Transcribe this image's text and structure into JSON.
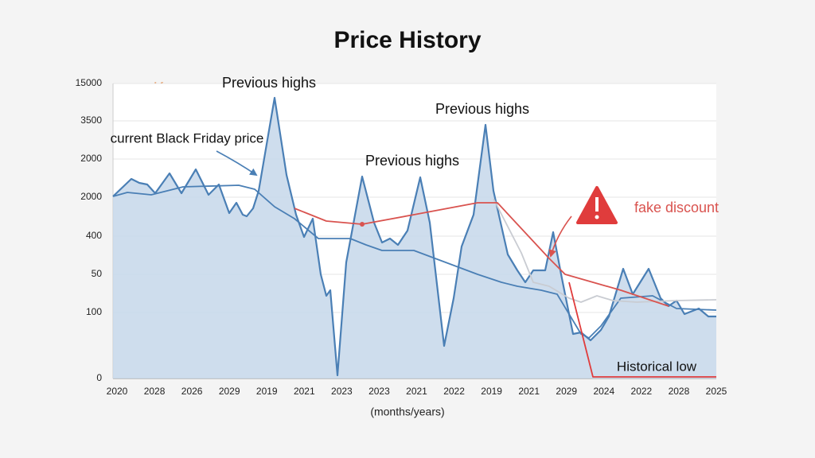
{
  "chart_data": {
    "type": "line",
    "title": "Price History",
    "x_label": "(months/years)",
    "logo": "Keepa",
    "y_axis_labels": [
      "15000",
      "3500",
      "2000",
      "2000",
      "400",
      "50",
      "100",
      "0"
    ],
    "categories": [
      "2020",
      "2028",
      "2026",
      "2029",
      "2019",
      "2021",
      "2023",
      "2023",
      "2021",
      "2022",
      "2019",
      "2021",
      "2029",
      "2024",
      "2022",
      "2028",
      "2025"
    ],
    "xlim": [
      0,
      758
    ],
    "ylim": [
      0,
      371
    ],
    "grid": true,
    "series": [
      {
        "color": "#4a7fb5",
        "fill": "#c5d7ea",
        "x": [
          0,
          23,
          33,
          43,
          53,
          71,
          86,
          104,
          120,
          133,
          146,
          155,
          163,
          168,
          176,
          183,
          203,
          218,
          230,
          240,
          251,
          261,
          268,
          273,
          282,
          293,
          313,
          328,
          338,
          348,
          358,
          370,
          386,
          398,
          416,
          428,
          438,
          453,
          468,
          478,
          496,
          508,
          518,
          528,
          543,
          553,
          563,
          578,
          588,
          600,
          613,
          623,
          641,
          653,
          673,
          688,
          698,
          708,
          718,
          736,
          748,
          758
        ],
        "values": [
          229,
          251,
          246,
          244,
          233,
          258,
          233,
          263,
          231,
          244,
          208,
          221,
          206,
          204,
          214,
          236,
          353,
          256,
          206,
          178,
          201,
          131,
          104,
          111,
          4,
          146,
          254,
          196,
          171,
          176,
          168,
          186,
          253,
          196,
          41,
          101,
          166,
          206,
          319,
          236,
          156,
          136,
          121,
          136,
          136,
          184,
          131,
          56,
          58,
          48,
          61,
          78,
          138,
          106,
          138,
          101,
          91,
          98,
          81,
          88,
          78,
          78
        ]
      },
      {
        "color": "#4a7fb5",
        "x": [
          0,
          18,
          48,
          88,
          158,
          178,
          203,
          228,
          258,
          298,
          318,
          338,
          378,
          418,
          458,
          488,
          508,
          538,
          558,
          588,
          598,
          613,
          638,
          678,
          708,
          758
        ],
        "values": [
          229,
          234,
          231,
          241,
          243,
          238,
          216,
          201,
          176,
          176,
          168,
          161,
          161,
          146,
          131,
          121,
          116,
          111,
          106,
          56,
          51,
          66,
          101,
          104,
          88,
          86
        ]
      },
      {
        "color": "#c9ccd2",
        "x": [
          478,
          513,
          528,
          548,
          573,
          588,
          608,
          628,
          658,
          708,
          758
        ],
        "values": [
          226,
          158,
          121,
          116,
          101,
          96,
          104,
          98,
          96,
          98,
          99
        ]
      },
      {
        "color": "#d9534f",
        "x": [
          228,
          268,
          313,
          378,
          458,
          483,
          548,
          568,
          638,
          698
        ],
        "values": [
          214,
          198,
          194,
          206,
          221,
          221,
          151,
          131,
          111,
          91
        ]
      },
      {
        "color": "#e03c3c",
        "x": [
          573,
          603,
          758
        ],
        "values": [
          121,
          2,
          2
        ]
      }
    ],
    "annotations": [
      "Previous highs",
      "Previous highs",
      "Previous highs",
      "current Black Friday price",
      "fake discount",
      "Historical low"
    ]
  }
}
